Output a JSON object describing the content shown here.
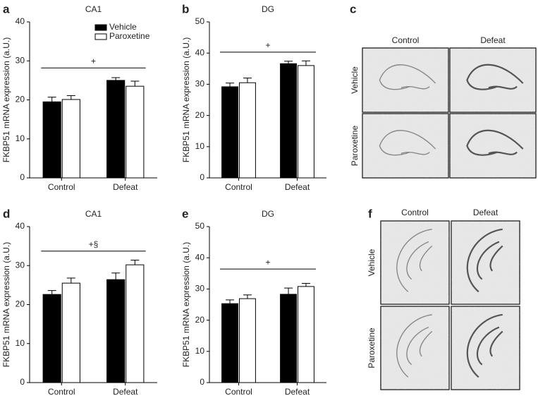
{
  "chart_data": [
    {
      "type": "bar",
      "panel": "a",
      "title": "CA1",
      "ylabel": "FKBP51 mRNA expression (a.U.)",
      "categories": [
        "Control",
        "Defeat"
      ],
      "series": [
        {
          "name": "Vehicle",
          "color": "#000000",
          "values": [
            19.5,
            25.0
          ],
          "errors": [
            1.2,
            0.7
          ]
        },
        {
          "name": "Paroxetine",
          "color": "#ffffff",
          "values": [
            20.1,
            23.5
          ],
          "errors": [
            1.0,
            1.3
          ]
        }
      ],
      "ylim": [
        0,
        40
      ],
      "yticks": [
        0,
        10,
        20,
        30,
        40
      ],
      "legend": "upper right",
      "annotation": {
        "label": "+",
        "y": 28.2
      }
    },
    {
      "type": "bar",
      "panel": "b",
      "title": "DG",
      "ylabel": "FKBP51 mRNA expression (a.U.)",
      "categories": [
        "Control",
        "Defeat"
      ],
      "series": [
        {
          "name": "Vehicle",
          "color": "#000000",
          "values": [
            29.2,
            36.6
          ],
          "errors": [
            1.2,
            0.8
          ]
        },
        {
          "name": "Paroxetine",
          "color": "#ffffff",
          "values": [
            30.5,
            36.0
          ],
          "errors": [
            1.5,
            1.5
          ]
        }
      ],
      "ylim": [
        0,
        50
      ],
      "yticks": [
        0,
        10,
        20,
        30,
        40,
        50
      ],
      "annotation": {
        "label": "+",
        "y": 40.3
      }
    },
    {
      "type": "bar",
      "panel": "d",
      "title": "CA1",
      "ylabel": "FKBP51 mRNA expression (a.U.)",
      "categories": [
        "Control",
        "Defeat"
      ],
      "series": [
        {
          "name": "Vehicle",
          "color": "#000000",
          "values": [
            22.6,
            26.4
          ],
          "errors": [
            1.0,
            1.7
          ]
        },
        {
          "name": "Paroxetine",
          "color": "#ffffff",
          "values": [
            25.5,
            30.2
          ],
          "errors": [
            1.3,
            1.2
          ]
        }
      ],
      "ylim": [
        0,
        40
      ],
      "yticks": [
        0,
        10,
        20,
        30,
        40
      ],
      "annotation": {
        "label": "+§",
        "y": 33.7
      }
    },
    {
      "type": "bar",
      "panel": "e",
      "title": "DG",
      "ylabel": "FKBP51 mRNA expression (a.U.)",
      "categories": [
        "Control",
        "Defeat"
      ],
      "series": [
        {
          "name": "Vehicle",
          "color": "#000000",
          "values": [
            25.3,
            28.3
          ],
          "errors": [
            1.2,
            2.0
          ]
        },
        {
          "name": "Paroxetine",
          "color": "#ffffff",
          "values": [
            26.9,
            30.8
          ],
          "errors": [
            1.2,
            1.0
          ]
        }
      ],
      "ylim": [
        0,
        50
      ],
      "yticks": [
        0,
        10,
        20,
        30,
        40,
        50
      ],
      "annotation": {
        "label": "+",
        "y": 36.4
      }
    }
  ],
  "image_panels": [
    {
      "panel": "c",
      "columns": [
        "Control",
        "Defeat"
      ],
      "rows": [
        "Vehicle",
        "Paroxetine"
      ]
    },
    {
      "panel": "f",
      "columns": [
        "Control",
        "Defeat"
      ],
      "rows": [
        "Vehicle",
        "Paroxetine"
      ]
    }
  ]
}
